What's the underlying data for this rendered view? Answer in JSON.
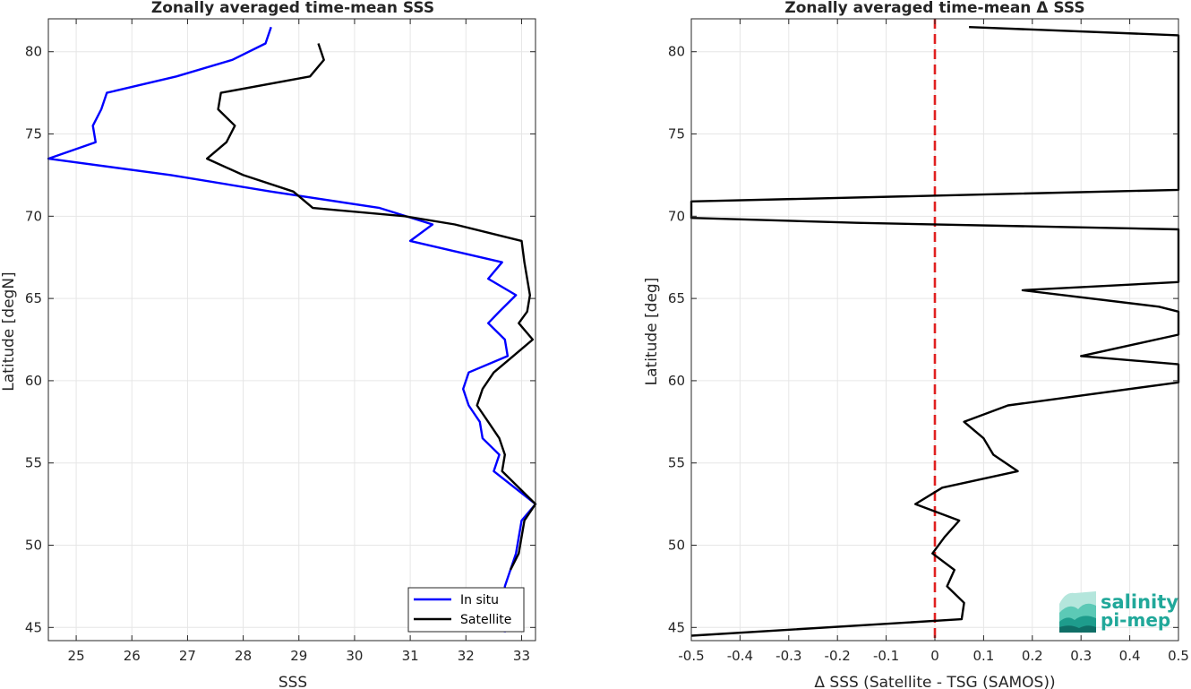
{
  "chart_data": [
    {
      "type": "line",
      "title": "Zonally averaged time-mean SSS",
      "xlabel": "SSS",
      "ylabel": "Latitude [degN]",
      "xlim": [
        24.5,
        33.25
      ],
      "ylim": [
        44.2,
        82
      ],
      "xticks": [
        25,
        26,
        27,
        28,
        29,
        30,
        31,
        32,
        33
      ],
      "yticks": [
        45,
        50,
        55,
        60,
        65,
        70,
        75,
        80
      ],
      "grid": true,
      "legend": "bottom-right",
      "series": [
        {
          "name": "In situ",
          "color": "#0000ff",
          "points": [
            [
              28.5,
              81.5
            ],
            [
              28.4,
              80.5
            ],
            [
              27.8,
              79.5
            ],
            [
              26.8,
              78.5
            ],
            [
              25.55,
              77.5
            ],
            [
              25.45,
              76.5
            ],
            [
              25.3,
              75.5
            ],
            [
              25.35,
              74.5
            ],
            [
              24.5,
              73.5
            ],
            [
              26.7,
              72.5
            ],
            [
              28.5,
              71.5
            ],
            [
              30.45,
              70.5
            ],
            [
              31.4,
              69.5
            ],
            [
              31.0,
              68.5
            ],
            [
              32.65,
              67.2
            ],
            [
              32.4,
              66.2
            ],
            [
              32.9,
              65.2
            ],
            [
              32.6,
              64.2
            ],
            [
              32.4,
              63.5
            ],
            [
              32.7,
              62.5
            ],
            [
              32.75,
              61.5
            ],
            [
              32.05,
              60.5
            ],
            [
              31.95,
              59.5
            ],
            [
              32.05,
              58.5
            ],
            [
              32.25,
              57.5
            ],
            [
              32.3,
              56.5
            ],
            [
              32.6,
              55.5
            ],
            [
              32.5,
              54.5
            ],
            [
              33.25,
              52.5
            ],
            [
              33.0,
              51.5
            ],
            [
              32.9,
              49.5
            ],
            [
              32.7,
              47.5
            ],
            [
              32.7,
              44.7
            ]
          ]
        },
        {
          "name": "Satellite",
          "color": "#000000",
          "points": [
            [
              29.35,
              80.5
            ],
            [
              29.45,
              79.5
            ],
            [
              29.2,
              78.5
            ],
            [
              27.6,
              77.5
            ],
            [
              27.55,
              76.5
            ],
            [
              27.85,
              75.5
            ],
            [
              27.7,
              74.5
            ],
            [
              27.35,
              73.5
            ],
            [
              28.0,
              72.5
            ],
            [
              28.9,
              71.5
            ],
            [
              29.25,
              70.5
            ],
            [
              30.9,
              70.0
            ],
            [
              31.8,
              69.5
            ],
            [
              33.0,
              68.5
            ],
            [
              33.05,
              67.2
            ],
            [
              33.1,
              66.2
            ],
            [
              33.15,
              65.2
            ],
            [
              33.1,
              64.2
            ],
            [
              32.95,
              63.5
            ],
            [
              33.2,
              62.5
            ],
            [
              32.85,
              61.5
            ],
            [
              32.5,
              60.5
            ],
            [
              32.3,
              59.5
            ],
            [
              32.2,
              58.5
            ],
            [
              32.4,
              57.5
            ],
            [
              32.6,
              56.5
            ],
            [
              32.7,
              55.5
            ],
            [
              32.65,
              54.5
            ],
            [
              33.25,
              52.5
            ],
            [
              33.05,
              51.5
            ],
            [
              32.95,
              49.5
            ],
            [
              32.8,
              48.5
            ]
          ]
        }
      ]
    },
    {
      "type": "line",
      "title": "Zonally averaged time-mean Δ SSS",
      "xlabel": "Δ SSS (Satellite - TSG (SAMOS))",
      "ylabel": "Latitude [deg]",
      "xlim": [
        -0.5,
        0.5
      ],
      "ylim": [
        44.2,
        82
      ],
      "xticks": [
        -0.5,
        -0.4,
        -0.3,
        -0.2,
        -0.1,
        0,
        0.1,
        0.2,
        0.3,
        0.4,
        0.5
      ],
      "yticks": [
        45,
        50,
        55,
        60,
        65,
        70,
        75,
        80
      ],
      "xtick_labels": [
        "-0.5",
        "-0.4",
        "-0.3",
        "-0.2",
        "-0.1",
        "0",
        "0.1",
        "0.2",
        "0.3",
        "0.4",
        "0.5"
      ],
      "grid": true,
      "reference_line": {
        "x": 0,
        "color": "#e02020",
        "style": "dashed"
      },
      "series": [
        {
          "color": "#000000",
          "points": [
            [
              0.07,
              81.5
            ],
            [
              0.5,
              81.0
            ],
            [
              0.5,
              71.6
            ],
            [
              -0.5,
              70.9
            ],
            [
              -0.5,
              69.9
            ],
            [
              -0.16,
              69.6
            ],
            [
              0.5,
              69.2
            ],
            [
              0.5,
              66.0
            ],
            [
              0.18,
              65.5
            ],
            [
              0.46,
              64.5
            ],
            [
              0.5,
              64.2
            ],
            [
              0.5,
              62.8
            ],
            [
              0.3,
              61.5
            ],
            [
              0.5,
              61.0
            ],
            [
              0.5,
              59.9
            ],
            [
              0.15,
              58.5
            ],
            [
              0.06,
              57.5
            ],
            [
              0.1,
              56.5
            ],
            [
              0.12,
              55.5
            ],
            [
              0.17,
              54.5
            ],
            [
              0.015,
              53.5
            ],
            [
              -0.04,
              52.5
            ],
            [
              0.05,
              51.5
            ],
            [
              0.02,
              50.5
            ],
            [
              -0.005,
              49.5
            ],
            [
              0.04,
              48.5
            ],
            [
              0.025,
              47.5
            ],
            [
              0.06,
              46.5
            ],
            [
              0.055,
              45.5
            ],
            [
              -0.5,
              44.5
            ]
          ]
        }
      ]
    }
  ],
  "logo": {
    "line1": "salinity",
    "line2": "pi-mep"
  }
}
